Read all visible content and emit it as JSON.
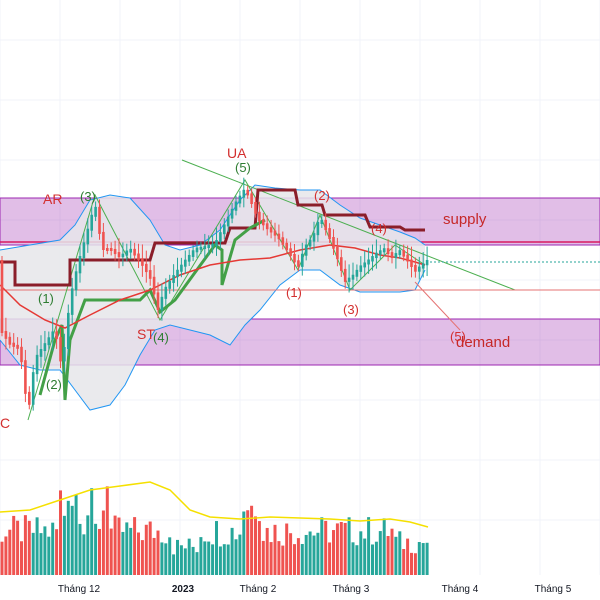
{
  "chart_data": {
    "type": "candlestick",
    "grid": true,
    "x_ticks": [
      "Tháng 12",
      "2023",
      "Tháng 2",
      "Tháng 3",
      "Tháng 4",
      "Tháng 5"
    ],
    "zones": [
      {
        "name": "supply",
        "label": "supply",
        "color": "#9c27b0"
      },
      {
        "name": "demand",
        "label": "demand",
        "color": "#9c27b0"
      }
    ],
    "annotations": {
      "AR": "AR",
      "UA": "UA",
      "ST": "ST",
      "SC": "C",
      "w1a": "(1)",
      "w2a": "(2)",
      "w3a": "(3)",
      "w4a": "(4)",
      "w5a": "(5)",
      "w1b": "(1)",
      "w2b": "(2)",
      "w3b": "(3)",
      "w4b": "(4)",
      "w5b": "(5)"
    },
    "colors": {
      "up": "#26a69a",
      "down": "#ef5350",
      "bollinger": "#2196f3",
      "bollinger_fill": "#e6e6ea",
      "ma_fast": "#e53935",
      "ma_slow": "#43a047",
      "ma_long": "#8b1e2a",
      "trend_green": "#4caf50",
      "trend_red": "#e57373",
      "volume_ma": "#f5e000",
      "label_red": "#d32f2f",
      "label_green": "#2e7d32"
    }
  }
}
